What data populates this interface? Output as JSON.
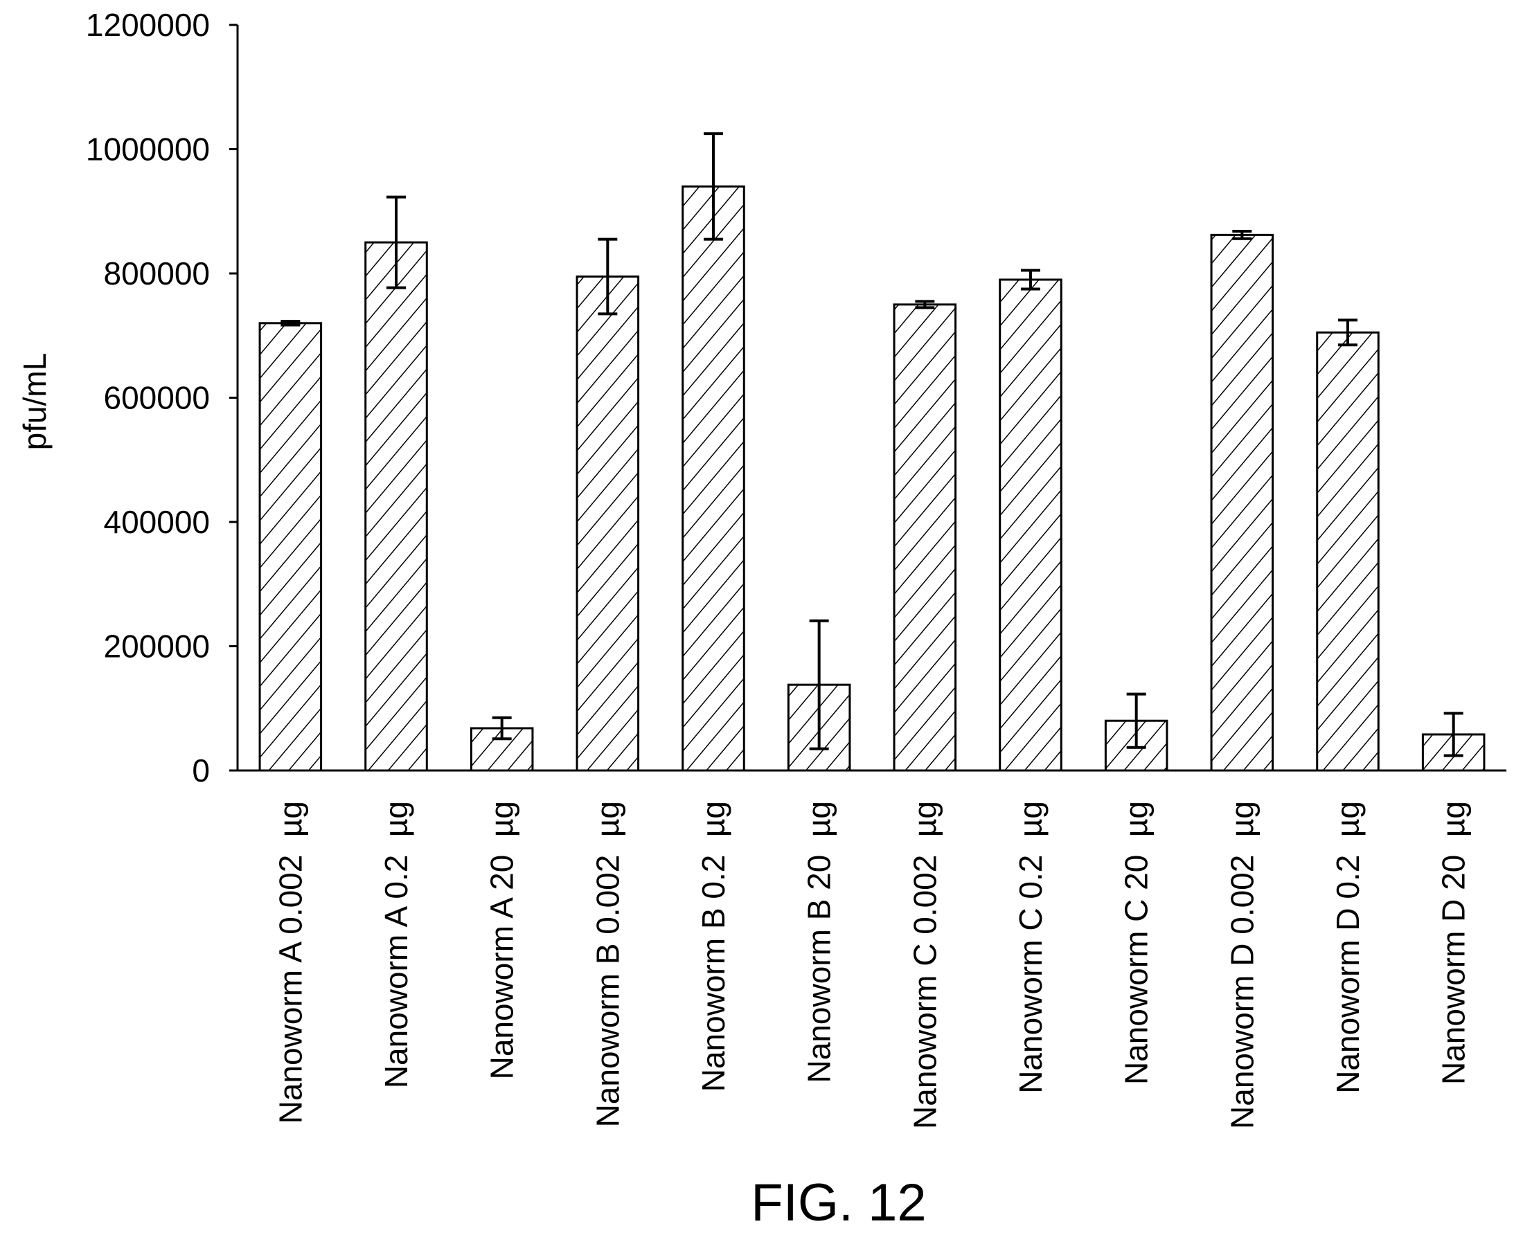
{
  "figure_label": "FIG. 12",
  "chart_data": {
    "type": "bar",
    "title": "",
    "xlabel": "",
    "ylabel": "pfu/mL",
    "ylim": [
      0,
      1200000
    ],
    "yticks": [
      "0",
      "200000",
      "400000",
      "600000",
      "800000",
      "1000000",
      "1200000"
    ],
    "categories": [
      "Nanoworm A 0.002  µg",
      "Nanoworm A 0.2  µg",
      "Nanoworm A 20  µg",
      "Nanoworm B 0.002  µg",
      "Nanoworm B 0.2  µg",
      "Nanoworm B 20  µg",
      "Nanoworm C 0.002  µg",
      "Nanoworm C 0.2  µg",
      "Nanoworm C 20  µg",
      "Nanoworm D 0.002  µg",
      "Nanoworm D 0.2  µg",
      "Nanoworm D 20  µg"
    ],
    "values": [
      720000,
      850000,
      68000,
      795000,
      940000,
      138000,
      750000,
      790000,
      80000,
      862000,
      705000,
      58000
    ],
    "errors": [
      3000,
      73000,
      17000,
      60000,
      85000,
      103000,
      5000,
      15000,
      43000,
      6000,
      20000,
      34000
    ],
    "bar_fill": "diagonal-hatch",
    "bar_color": "#000000",
    "grid": false,
    "legend": "none"
  }
}
